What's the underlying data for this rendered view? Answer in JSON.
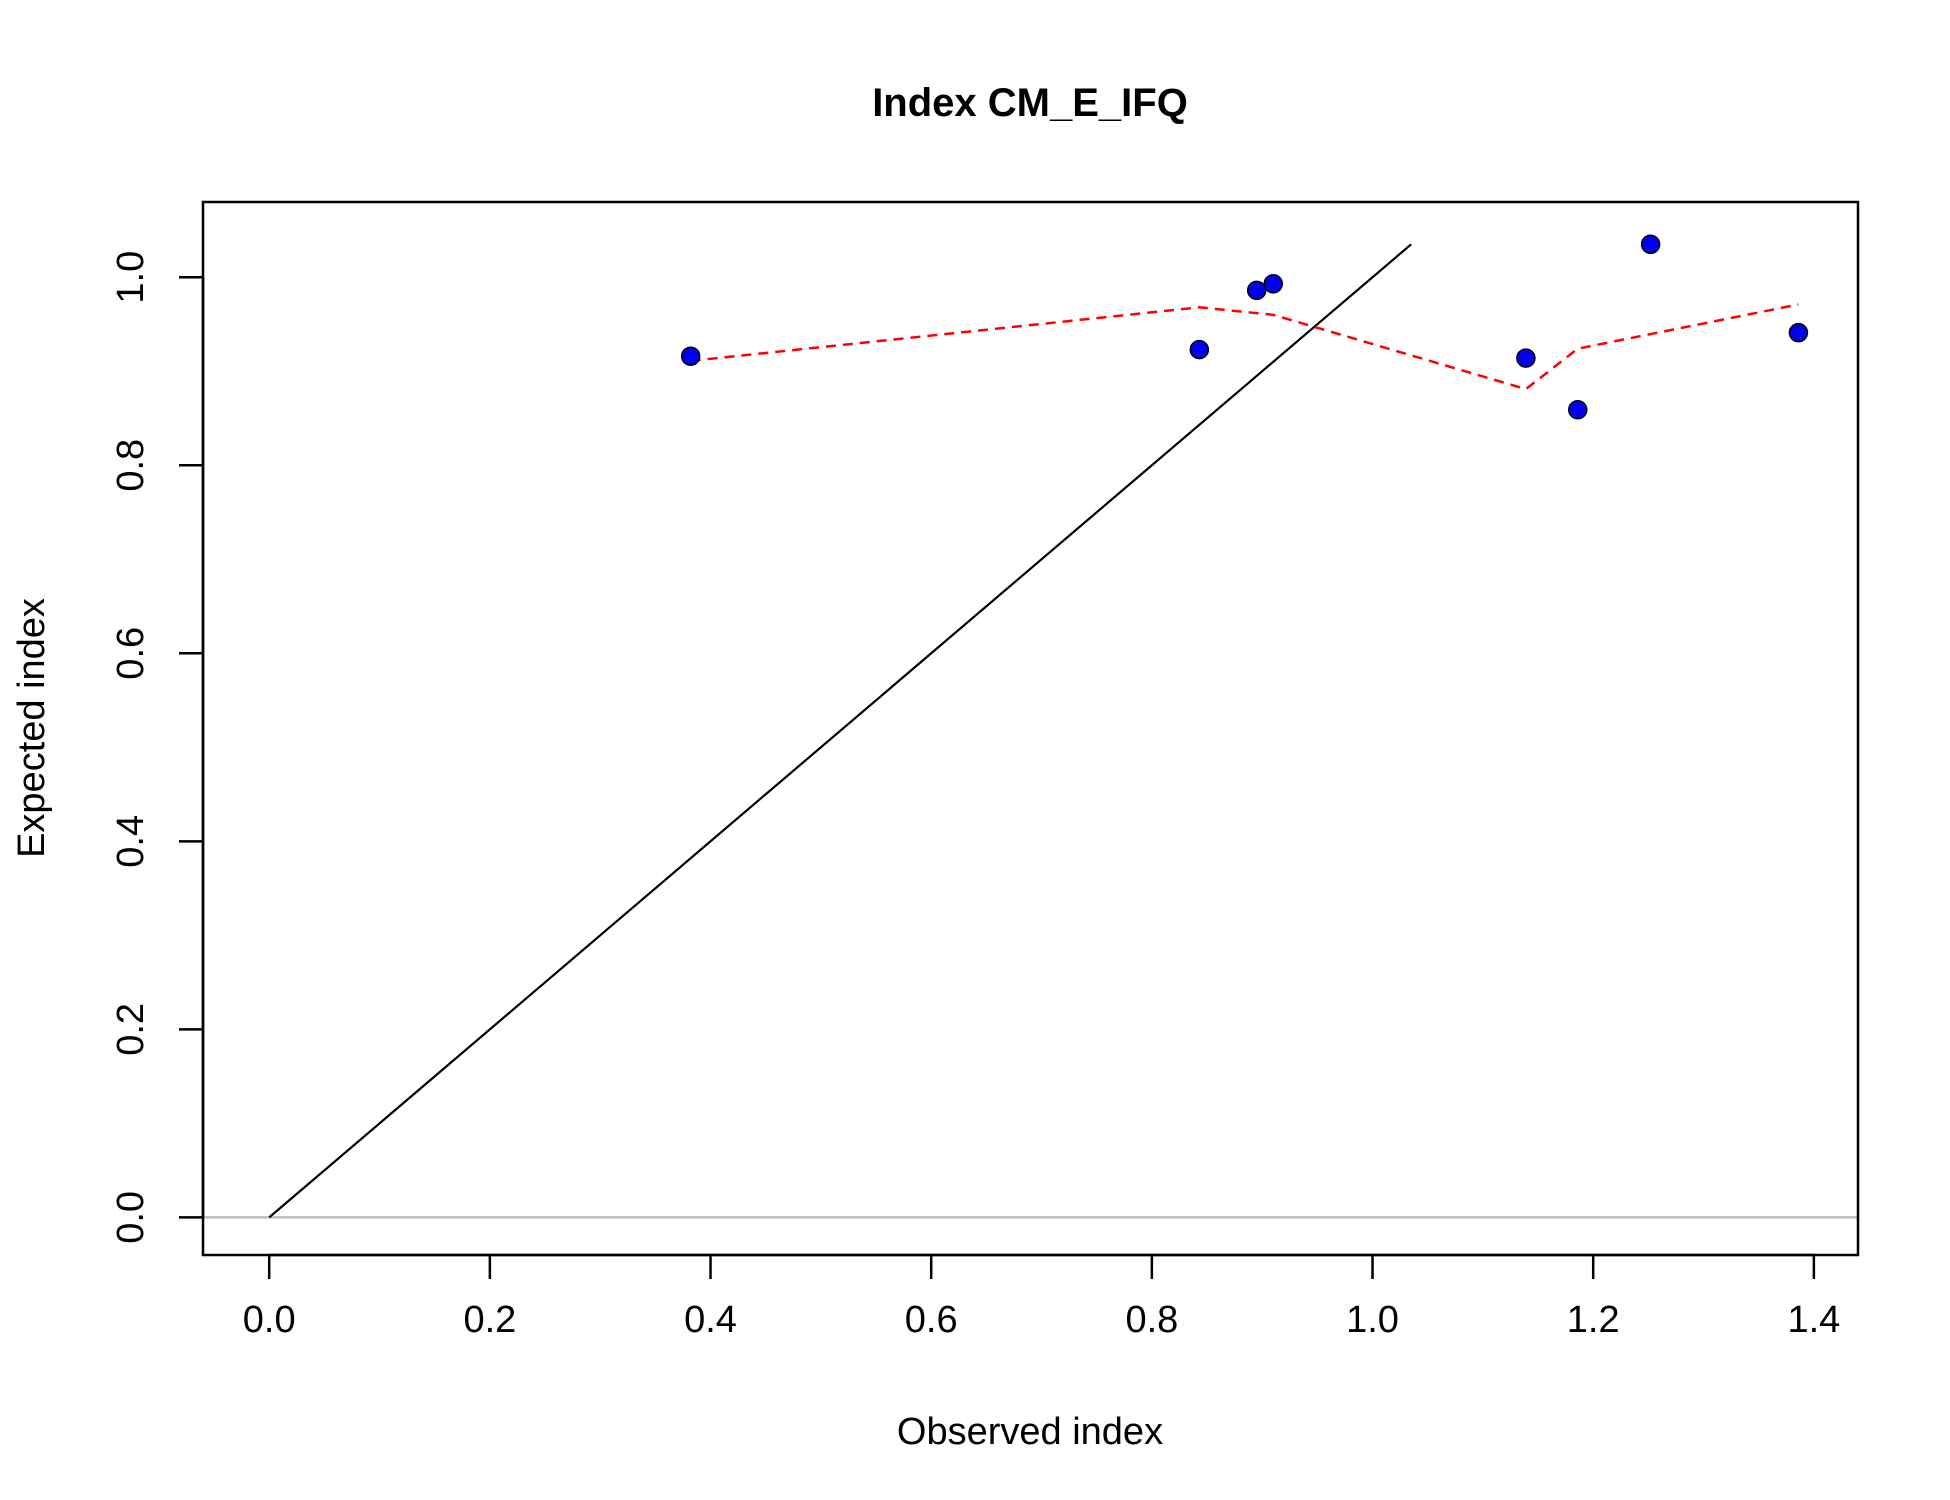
{
  "chart_data": {
    "type": "scatter",
    "title": "Index CM_E_IFQ",
    "xlabel": "Observed index",
    "ylabel": "Expected index",
    "xlim": [
      -0.06,
      1.44
    ],
    "ylim": [
      -0.04,
      1.08
    ],
    "x_ticks": [
      "0.0",
      "0.2",
      "0.4",
      "0.6",
      "0.8",
      "1.0",
      "1.2",
      "1.4"
    ],
    "y_ticks": [
      "0.0",
      "0.2",
      "0.4",
      "0.6",
      "0.8",
      "1.0"
    ],
    "grid": false,
    "points": {
      "color": "#0000ee",
      "x": [
        0.382,
        0.843,
        0.895,
        0.91,
        1.139,
        1.186,
        1.252,
        1.386
      ],
      "y": [
        0.916,
        0.923,
        0.986,
        0.993,
        0.914,
        0.859,
        1.035,
        0.941
      ]
    },
    "trend_line": {
      "color": "#ff0000",
      "style": "dashed",
      "x": [
        0.382,
        0.843,
        0.91,
        1.139,
        1.186,
        1.386
      ],
      "y": [
        0.911,
        0.968,
        0.96,
        0.881,
        0.924,
        0.971
      ]
    },
    "identity_line": {
      "color": "#000000",
      "x": [
        0,
        1.035
      ],
      "y": [
        0,
        1.035
      ]
    },
    "zero_line": {
      "color": "#bebebe",
      "y": 0
    }
  }
}
